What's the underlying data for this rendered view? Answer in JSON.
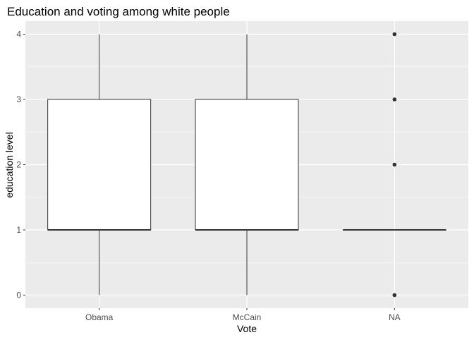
{
  "chart_data": {
    "type": "boxplot",
    "title": "Education and voting among white people",
    "xlabel": "Vote",
    "ylabel": "education level",
    "categories": [
      "Obama",
      "McCain",
      "NA"
    ],
    "yticks": [
      0,
      1,
      2,
      3,
      4
    ],
    "ylim": [
      -0.2,
      4.2
    ],
    "grid": true,
    "legend": "none",
    "boxes": [
      {
        "category": "Obama",
        "min": 0,
        "q1": 1,
        "median": 1,
        "q3": 3,
        "max": 4,
        "outliers": []
      },
      {
        "category": "McCain",
        "min": 0,
        "q1": 1,
        "median": 1,
        "q3": 3,
        "max": 4,
        "outliers": []
      },
      {
        "category": "NA",
        "min": 1,
        "q1": 1,
        "median": 1,
        "q3": 1,
        "max": 1,
        "outliers": [
          0,
          2,
          3,
          4
        ]
      }
    ]
  },
  "colors": {
    "panel_background": "#ebebeb",
    "grid_major": "#ffffff",
    "box_fill": "#ffffff",
    "box_stroke": "#333333",
    "outlier": "#333333"
  }
}
